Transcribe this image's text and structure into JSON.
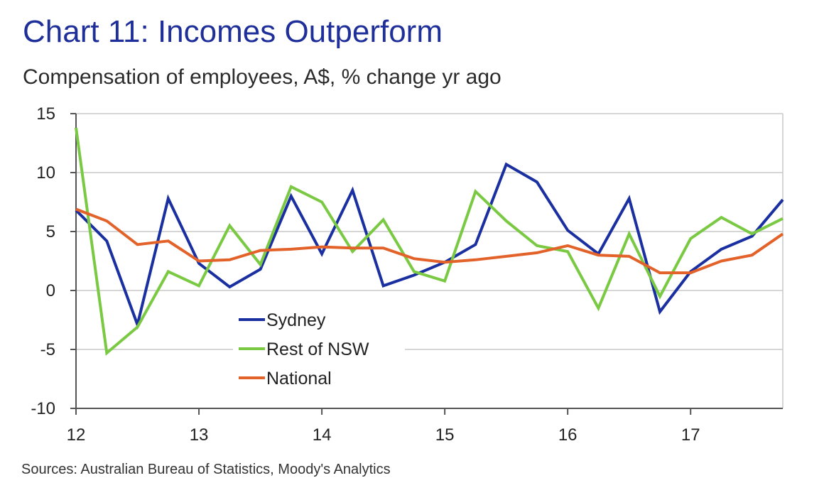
{
  "chart_data": {
    "type": "line",
    "title": "Chart 11: Incomes Outperform",
    "subtitle": "Compensation of employees, A$, % change yr ago",
    "source": "Sources: Australian Bureau of Statistics, Moody's Analytics",
    "x": [
      12,
      12.25,
      12.5,
      12.75,
      13,
      13.25,
      13.5,
      13.75,
      14,
      14.25,
      14.5,
      14.75,
      15,
      15.25,
      15.5,
      15.75,
      16,
      16.25,
      16.5,
      16.75,
      17,
      17.25,
      17.5,
      17.75
    ],
    "x_ticks": [
      "12",
      "13",
      "14",
      "15",
      "16",
      "17"
    ],
    "x_tick_values": [
      12,
      13,
      14,
      15,
      16,
      17
    ],
    "xlim": [
      12,
      17.75
    ],
    "ylim": [
      -10,
      15
    ],
    "y_ticks": [
      "15",
      "10",
      "5",
      "0",
      "-5",
      "-10"
    ],
    "y_tick_values": [
      15,
      10,
      5,
      0,
      -5,
      -10
    ],
    "grid": true,
    "legend_position": "lower-left inside plot",
    "series": [
      {
        "name": "Sydney",
        "color": "#1a2fa0",
        "values": [
          6.8,
          4.2,
          -2.9,
          7.8,
          2.3,
          0.3,
          1.8,
          8.0,
          3.1,
          8.5,
          0.4,
          1.3,
          2.4,
          3.9,
          10.7,
          9.2,
          5.1,
          3.1,
          7.8,
          -1.8,
          1.6,
          3.5,
          4.6,
          7.7
        ]
      },
      {
        "name": "Rest of NSW",
        "color": "#7ac943",
        "values": [
          13.8,
          -5.3,
          -3.1,
          1.6,
          0.4,
          5.5,
          2.2,
          8.8,
          7.5,
          3.3,
          6.0,
          1.6,
          0.8,
          8.4,
          5.9,
          3.8,
          3.3,
          -1.5,
          4.8,
          -0.5,
          4.4,
          6.2,
          4.8,
          6.1
        ]
      },
      {
        "name": "National",
        "color": "#e2622a",
        "values": [
          6.9,
          5.9,
          3.9,
          4.2,
          2.5,
          2.6,
          3.4,
          3.5,
          3.7,
          3.6,
          3.6,
          2.7,
          2.4,
          2.6,
          2.9,
          3.2,
          3.8,
          3.0,
          2.9,
          1.5,
          1.5,
          2.5,
          3.0,
          4.8
        ]
      }
    ]
  }
}
